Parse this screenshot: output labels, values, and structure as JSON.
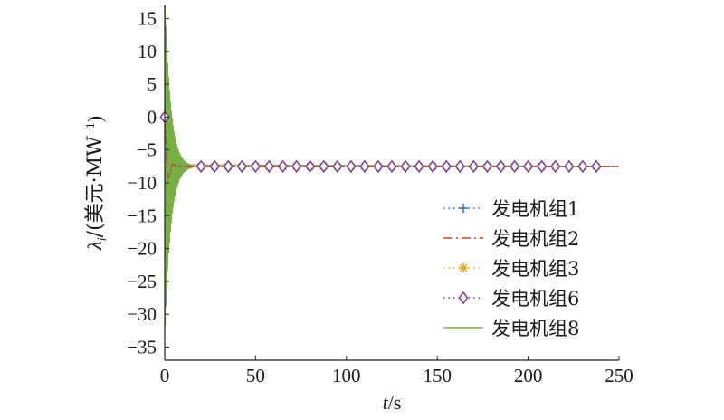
{
  "chart_data": {
    "type": "line",
    "xlabel": {
      "var": "t",
      "unit": "/s"
    },
    "ylabel": {
      "var": "λ",
      "sub": "i",
      "unit": "/(美元·MW",
      "sup": "−1",
      "close": ")"
    },
    "xlim": [
      0,
      250
    ],
    "ylim": [
      -37,
      17
    ],
    "xticks": [
      0,
      50,
      100,
      150,
      200,
      250
    ],
    "yticks": [
      15,
      10,
      5,
      0,
      -5,
      -10,
      -15,
      -20,
      -25,
      -30,
      -35
    ],
    "grid": false,
    "legend_position": "bottom-right",
    "steady_state_value": -7.5,
    "settling_time": 15,
    "series": [
      {
        "name": "发电机组1",
        "color": "#3f6e9e",
        "linestyle": "dotted",
        "marker": "plus",
        "x": [
          0,
          15,
          50,
          100,
          150,
          200,
          250
        ],
        "y": [
          0,
          -7.5,
          -7.5,
          -7.5,
          -7.5,
          -7.5,
          -7.5
        ]
      },
      {
        "name": "发电机组2",
        "color": "#d9451c",
        "linestyle": "dashdot",
        "marker": "none",
        "x": [
          0,
          15,
          50,
          100,
          150,
          200,
          250
        ],
        "y": [
          0,
          -7.5,
          -7.5,
          -7.5,
          -7.5,
          -7.5,
          -7.5
        ]
      },
      {
        "name": "发电机组3",
        "color": "#e3a020",
        "linestyle": "dotted",
        "marker": "asterisk",
        "x": [
          0,
          15,
          50,
          100,
          150,
          200,
          250
        ],
        "y": [
          0,
          -7.5,
          -7.5,
          -7.5,
          -7.5,
          -7.5,
          -7.5
        ]
      },
      {
        "name": "发电机组6",
        "color": "#7b3a96",
        "linestyle": "dotted",
        "marker": "diamond",
        "x": [
          0,
          15,
          50,
          100,
          150,
          200,
          250
        ],
        "y": [
          0,
          -7.5,
          -7.5,
          -7.5,
          -7.5,
          -7.5,
          -7.5
        ]
      },
      {
        "name": "发电机组8",
        "color": "#76b043",
        "linestyle": "solid",
        "marker": "none",
        "oscillation": {
          "t_end": 15,
          "initial_max": 17,
          "initial_min": -37
        },
        "x": [
          0,
          15,
          50,
          100,
          150,
          200,
          250
        ],
        "y": [
          0,
          -7.5,
          -7.5,
          -7.5,
          -7.5,
          -7.5,
          -7.5
        ]
      }
    ]
  }
}
